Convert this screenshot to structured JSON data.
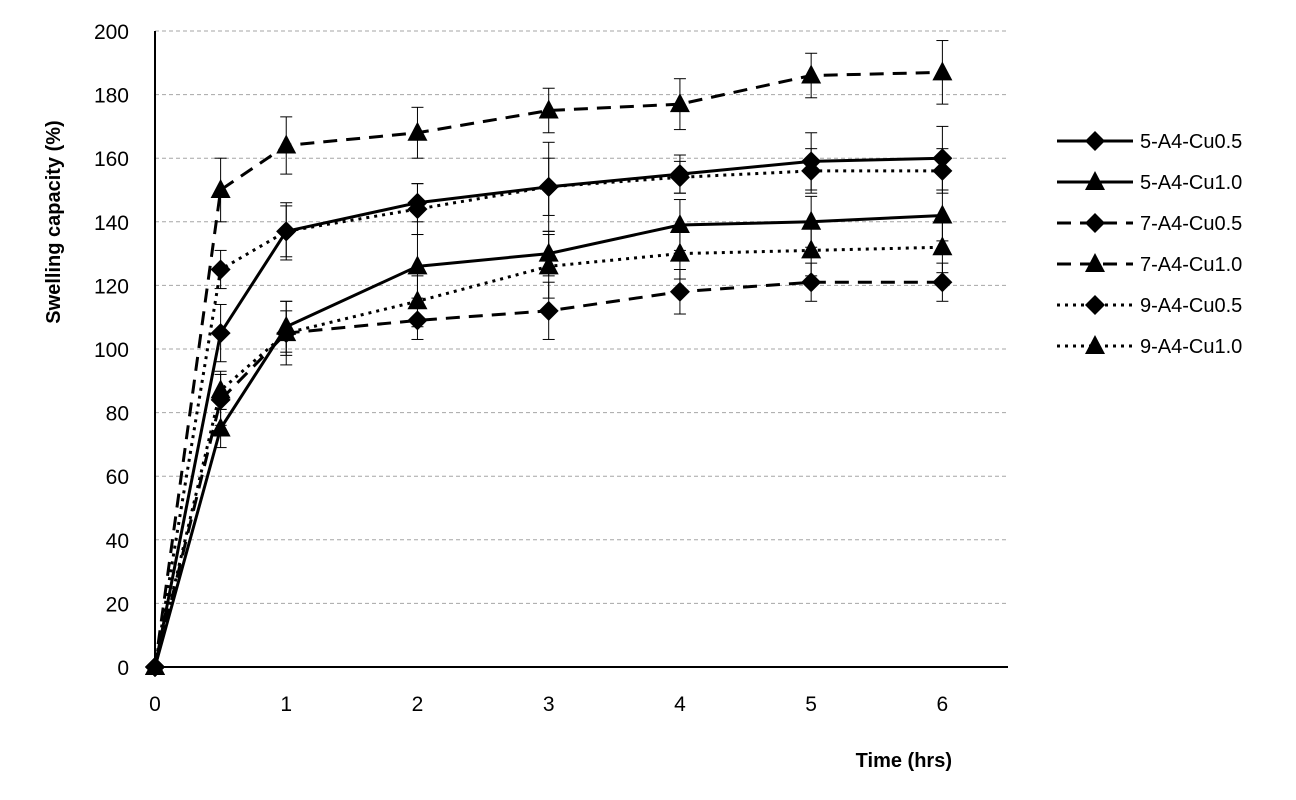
{
  "chart_data": {
    "type": "line",
    "xlabel": "Time (hrs)",
    "ylabel": "Swelling capacity (%)",
    "xlim": [
      0,
      6.5
    ],
    "ylim": [
      0,
      200
    ],
    "x_ticks": [
      0,
      1,
      2,
      3,
      4,
      5,
      6
    ],
    "y_ticks": [
      0,
      20,
      40,
      60,
      80,
      100,
      120,
      140,
      160,
      180,
      200
    ],
    "grid": "horizontal dashed",
    "legend_position": "right",
    "x": [
      0,
      0.5,
      1,
      2,
      3,
      4,
      5,
      6
    ],
    "series": [
      {
        "name": "5-A4-Cu0.5",
        "marker": "diamond",
        "line": "solid",
        "values": [
          0,
          105,
          137,
          146,
          151,
          155,
          159,
          160
        ],
        "errors": [
          0,
          9,
          9,
          6,
          14,
          6,
          9,
          10
        ]
      },
      {
        "name": "5-A4-Cu1.0",
        "marker": "triangle",
        "line": "solid",
        "values": [
          0,
          75,
          107,
          126,
          130,
          139,
          140,
          142
        ],
        "errors": [
          0,
          6,
          8,
          10,
          7,
          8,
          8,
          8
        ]
      },
      {
        "name": "7-A4-Cu0.5",
        "marker": "diamond",
        "line": "dashed",
        "values": [
          0,
          84,
          105,
          109,
          112,
          118,
          121,
          121
        ],
        "errors": [
          0,
          8,
          10,
          6,
          9,
          7,
          6,
          6
        ]
      },
      {
        "name": "7-A4-Cu1.0",
        "marker": "triangle",
        "line": "dashed",
        "values": [
          0,
          150,
          164,
          168,
          175,
          177,
          186,
          187
        ],
        "errors": [
          0,
          10,
          9,
          8,
          7,
          8,
          7,
          10
        ]
      },
      {
        "name": "9-A4-Cu0.5",
        "marker": "diamond",
        "line": "dotted",
        "values": [
          0,
          125,
          137,
          144,
          151,
          154,
          156,
          156
        ],
        "errors": [
          0,
          6,
          8,
          8,
          9,
          5,
          7,
          7
        ]
      },
      {
        "name": "9-A4-Cu1.0",
        "marker": "triangle",
        "line": "dotted",
        "values": [
          0,
          87,
          105,
          115,
          126,
          130,
          131,
          132
        ],
        "errors": [
          0,
          6,
          7,
          8,
          10,
          8,
          8,
          8
        ]
      }
    ]
  }
}
